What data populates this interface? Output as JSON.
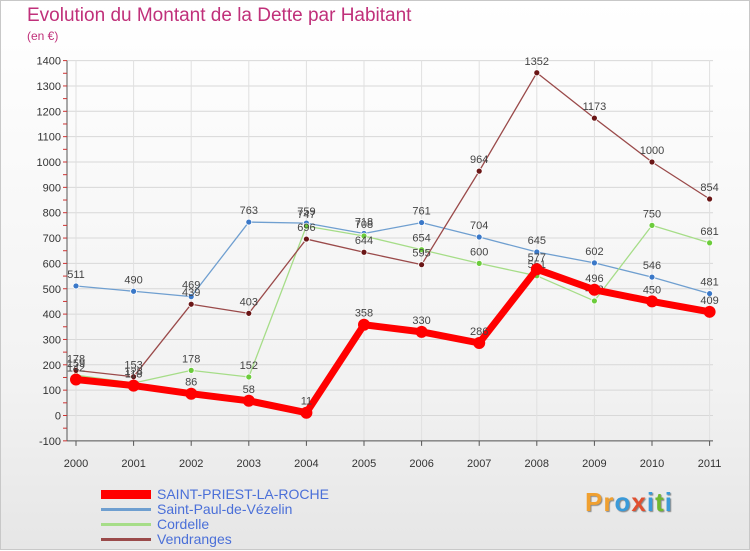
{
  "title": "Evolution du Montant de la Dette par Habitant",
  "subtitle": "(en €)",
  "brand": {
    "letters": [
      "P",
      "r",
      "o",
      "x",
      "i",
      "t",
      "i"
    ],
    "colors": [
      "#f0a030",
      "#f0a030",
      "#3a9ad9",
      "#e05030",
      "#3a9ad9",
      "#70b830",
      "#3a9ad9"
    ]
  },
  "chart_data": {
    "type": "line",
    "title": "Evolution du Montant de la Dette par Habitant",
    "ylabel": "(en €)",
    "xlabel": "",
    "ylim": [
      -100,
      1400
    ],
    "yticks": [
      -100,
      0,
      100,
      200,
      300,
      400,
      500,
      600,
      700,
      800,
      900,
      1000,
      1100,
      1200,
      1300,
      1400
    ],
    "categories": [
      "2000",
      "2001",
      "2002",
      "2003",
      "2004",
      "2005",
      "2006",
      "2007",
      "2008",
      "2009",
      "2010",
      "2011"
    ],
    "series": [
      {
        "name": "Saint-Paul-de-Vézelin",
        "color": "#6f9fd0",
        "marker": "#3a78c8",
        "width": 1.3,
        "radius": 3,
        "values": [
          511,
          490,
          469,
          763,
          759,
          718,
          761,
          704,
          645,
          602,
          546,
          481
        ]
      },
      {
        "name": "Cordelle",
        "color": "#a6dd88",
        "marker": "#6ccc3c",
        "width": 1.3,
        "radius": 3,
        "values": [
          159,
          128,
          178,
          152,
          747,
          708,
          654,
          600,
          551,
          452,
          750,
          681
        ]
      },
      {
        "name": "Vendranges",
        "color": "#9a4a4a",
        "marker": "#6a1616",
        "width": 1.3,
        "radius": 3,
        "values": [
          178,
          153,
          439,
          403,
          696,
          644,
          595,
          964,
          1352,
          1173,
          1000,
          854
        ]
      },
      {
        "name": "SAINT-PRIEST-LA-ROCHE",
        "color": "#ff0000",
        "marker": "#ff0000",
        "width": 7,
        "radius": 6,
        "values": [
          142,
          118,
          86,
          58,
          11,
          358,
          330,
          286,
          577,
          496,
          450,
          409
        ]
      }
    ],
    "legend_order": [
      "SAINT-PRIEST-LA-ROCHE",
      "Saint-Paul-de-Vézelin",
      "Cordelle",
      "Vendranges"
    ],
    "legend_position": "bottom-left",
    "grid": true
  }
}
